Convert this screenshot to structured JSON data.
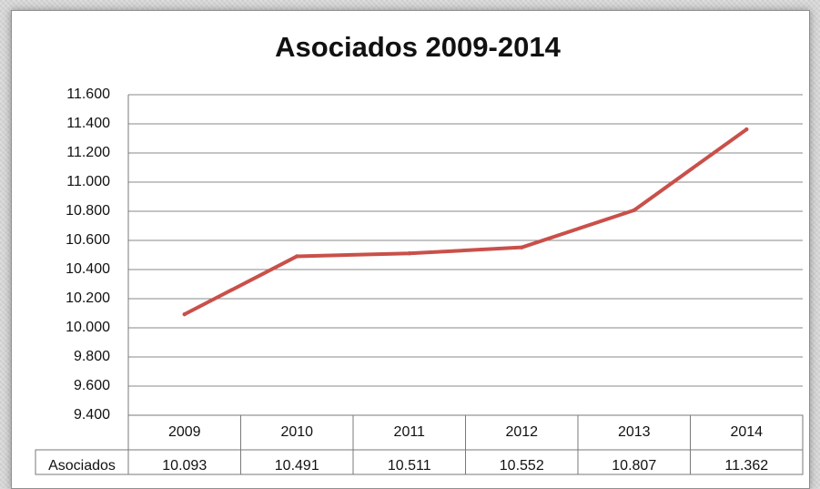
{
  "chart_data": {
    "type": "line",
    "title": "Asociados 2009-2014",
    "categories": [
      "2009",
      "2010",
      "2011",
      "2012",
      "2013",
      "2014"
    ],
    "series": [
      {
        "name": "Asociados",
        "values": [
          10.093,
          10.491,
          10.511,
          10.552,
          10.807,
          11.362
        ],
        "color": "#c9504a"
      }
    ],
    "y_ticks": [
      "11.600",
      "11.400",
      "11.200",
      "11.000",
      "10.800",
      "10.600",
      "10.400",
      "10.200",
      "10.000",
      "9.800",
      "9.600",
      "9.400"
    ],
    "ylim": [
      9.4,
      11.6
    ],
    "grid": true,
    "table": {
      "row_label": "Asociados",
      "values": [
        "10.093",
        "10.491",
        "10.511",
        "10.552",
        "10.807",
        "11.362"
      ]
    }
  }
}
